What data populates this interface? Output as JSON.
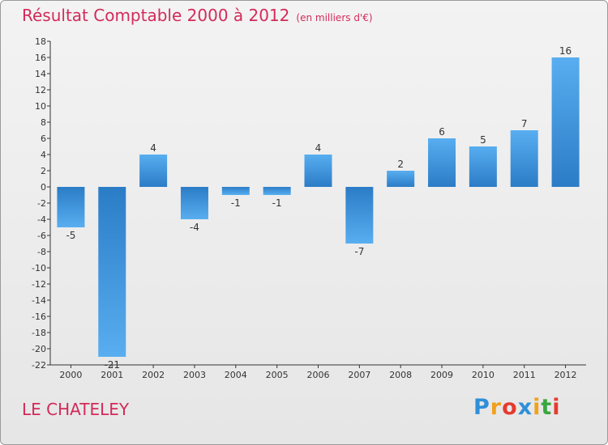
{
  "chart_data": {
    "type": "bar",
    "title": "Résultat Comptable 2000 à 2012",
    "subtitle": "(en milliers d'€)",
    "categories": [
      "2000",
      "2001",
      "2002",
      "2003",
      "2004",
      "2005",
      "2006",
      "2007",
      "2008",
      "2009",
      "2010",
      "2011",
      "2012"
    ],
    "values": [
      -5,
      -21,
      4,
      -4,
      -1,
      -1,
      4,
      -7,
      2,
      6,
      5,
      7,
      16
    ],
    "ylim": [
      -22,
      18
    ],
    "yticks": [
      18,
      16,
      14,
      12,
      10,
      8,
      6,
      4,
      2,
      0,
      -2,
      -4,
      -6,
      -8,
      -10,
      -12,
      -14,
      -16,
      -18,
      -20,
      -22
    ],
    "grid": false,
    "bar_color": "#3a8fd6"
  },
  "place_name": "LE CHATELEY",
  "logo": {
    "letters": [
      "P",
      "r",
      "o",
      "x",
      "i",
      "t",
      "i"
    ],
    "colors": [
      "#2f8fd8",
      "#f0a21c",
      "#e43b2f",
      "#2f8fd8",
      "#f0a21c",
      "#3aa640",
      "#e43b2f"
    ]
  }
}
